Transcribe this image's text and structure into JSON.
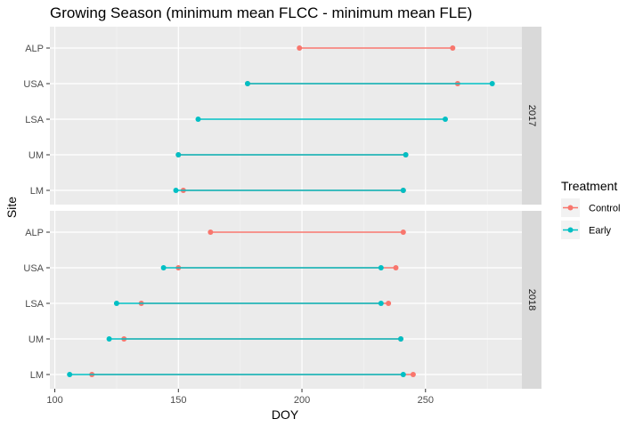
{
  "chart_data": {
    "type": "dumbbell",
    "title": "Growing Season (minimum mean FLCC - minimum mean FLE)",
    "xlabel": "DOY",
    "ylabel": "Site",
    "xlim": [
      98,
      289
    ],
    "xticks": [
      100,
      150,
      200,
      250
    ],
    "grid": true,
    "facets": [
      "2017",
      "2018"
    ],
    "categories": [
      "ALP",
      "USA",
      "LSA",
      "UM",
      "LM"
    ],
    "legend": {
      "title": "Treatment",
      "position": "right",
      "entries": [
        {
          "name": "Control",
          "color": "#F8766D"
        },
        {
          "name": "Early",
          "color": "#00BFC4"
        }
      ]
    },
    "series": [
      {
        "facet": "2017",
        "site": "ALP",
        "treatment": "Control",
        "start": 199,
        "end": 261
      },
      {
        "facet": "2017",
        "site": "USA",
        "treatment": "Control",
        "start": 178,
        "end": 263
      },
      {
        "facet": "2017",
        "site": "USA",
        "treatment": "Early",
        "start": 178,
        "end": 277
      },
      {
        "facet": "2017",
        "site": "LSA",
        "treatment": "Early",
        "start": 158,
        "end": 258
      },
      {
        "facet": "2017",
        "site": "UM",
        "treatment": "Control",
        "start": 150,
        "end": 242
      },
      {
        "facet": "2017",
        "site": "UM",
        "treatment": "Early",
        "start": 150,
        "end": 242
      },
      {
        "facet": "2017",
        "site": "LM",
        "treatment": "Control",
        "start": 152,
        "end": 241
      },
      {
        "facet": "2017",
        "site": "LM",
        "treatment": "Early",
        "start": 149,
        "end": 241
      },
      {
        "facet": "2018",
        "site": "ALP",
        "treatment": "Control",
        "start": 163,
        "end": 241
      },
      {
        "facet": "2018",
        "site": "USA",
        "treatment": "Control",
        "start": 150,
        "end": 238
      },
      {
        "facet": "2018",
        "site": "USA",
        "treatment": "Early",
        "start": 144,
        "end": 232
      },
      {
        "facet": "2018",
        "site": "LSA",
        "treatment": "Control",
        "start": 135,
        "end": 235
      },
      {
        "facet": "2018",
        "site": "LSA",
        "treatment": "Early",
        "start": 125,
        "end": 232
      },
      {
        "facet": "2018",
        "site": "UM",
        "treatment": "Control",
        "start": 128,
        "end": 240
      },
      {
        "facet": "2018",
        "site": "UM",
        "treatment": "Early",
        "start": 122,
        "end": 240
      },
      {
        "facet": "2018",
        "site": "LM",
        "treatment": "Control",
        "start": 115,
        "end": 245
      },
      {
        "facet": "2018",
        "site": "LM",
        "treatment": "Early",
        "start": 106,
        "end": 241
      }
    ]
  }
}
